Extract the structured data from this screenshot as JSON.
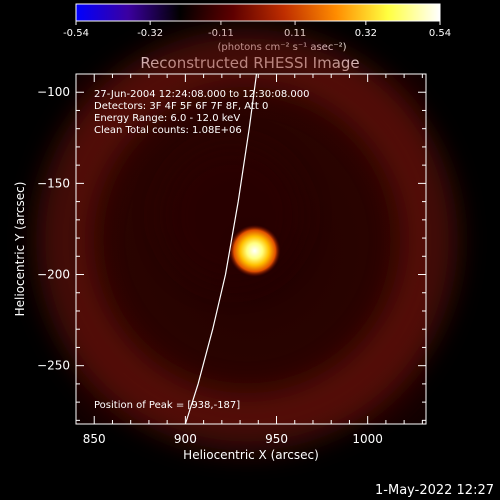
{
  "colorbar": {
    "ticks": [
      "-0.54",
      "-0.32",
      "-0.11",
      "0.11",
      "0.32",
      "0.54"
    ],
    "unit_label": "(photons cm⁻² s⁻¹ asec⁻²)",
    "range": [
      -0.54,
      0.54
    ]
  },
  "info": {
    "line1": "27-Jun-2004 12:24:08.000 to 12:30:08.000",
    "line2": "Detectors: 3F 4F 5F 6F 7F 8F, Att 0",
    "line3": "Energy Range: 6.0 - 12.0 keV",
    "line4": "Clean    Total counts: 1.08E+06",
    "peak": "Position of Peak = [938,-187]"
  },
  "footer": {
    "date": "1-May-2022 12:27"
  },
  "chart_data": {
    "type": "heatmap",
    "title": "Reconstructed RHESSI Image",
    "xlabel": "Heliocentric X (arcsec)",
    "ylabel": "Heliocentric Y (arcsec)",
    "xlim": [
      840,
      1032
    ],
    "ylim": [
      -282,
      -90
    ],
    "xticks": [
      850,
      900,
      950,
      1000
    ],
    "yticks": [
      -100,
      -150,
      -200,
      -250
    ],
    "peak": {
      "x": 938,
      "y": -187
    },
    "limb_curve": {
      "x": [
        900,
        907,
        915,
        922,
        929,
        935,
        939
      ],
      "y": [
        -282,
        -260,
        -230,
        -200,
        -160,
        -120,
        -90
      ]
    },
    "colormap": [
      "#0000ff",
      "#3b00a0",
      "#000000",
      "#5a0000",
      "#c23000",
      "#ff8c00",
      "#ffff40",
      "#ffffff"
    ]
  }
}
